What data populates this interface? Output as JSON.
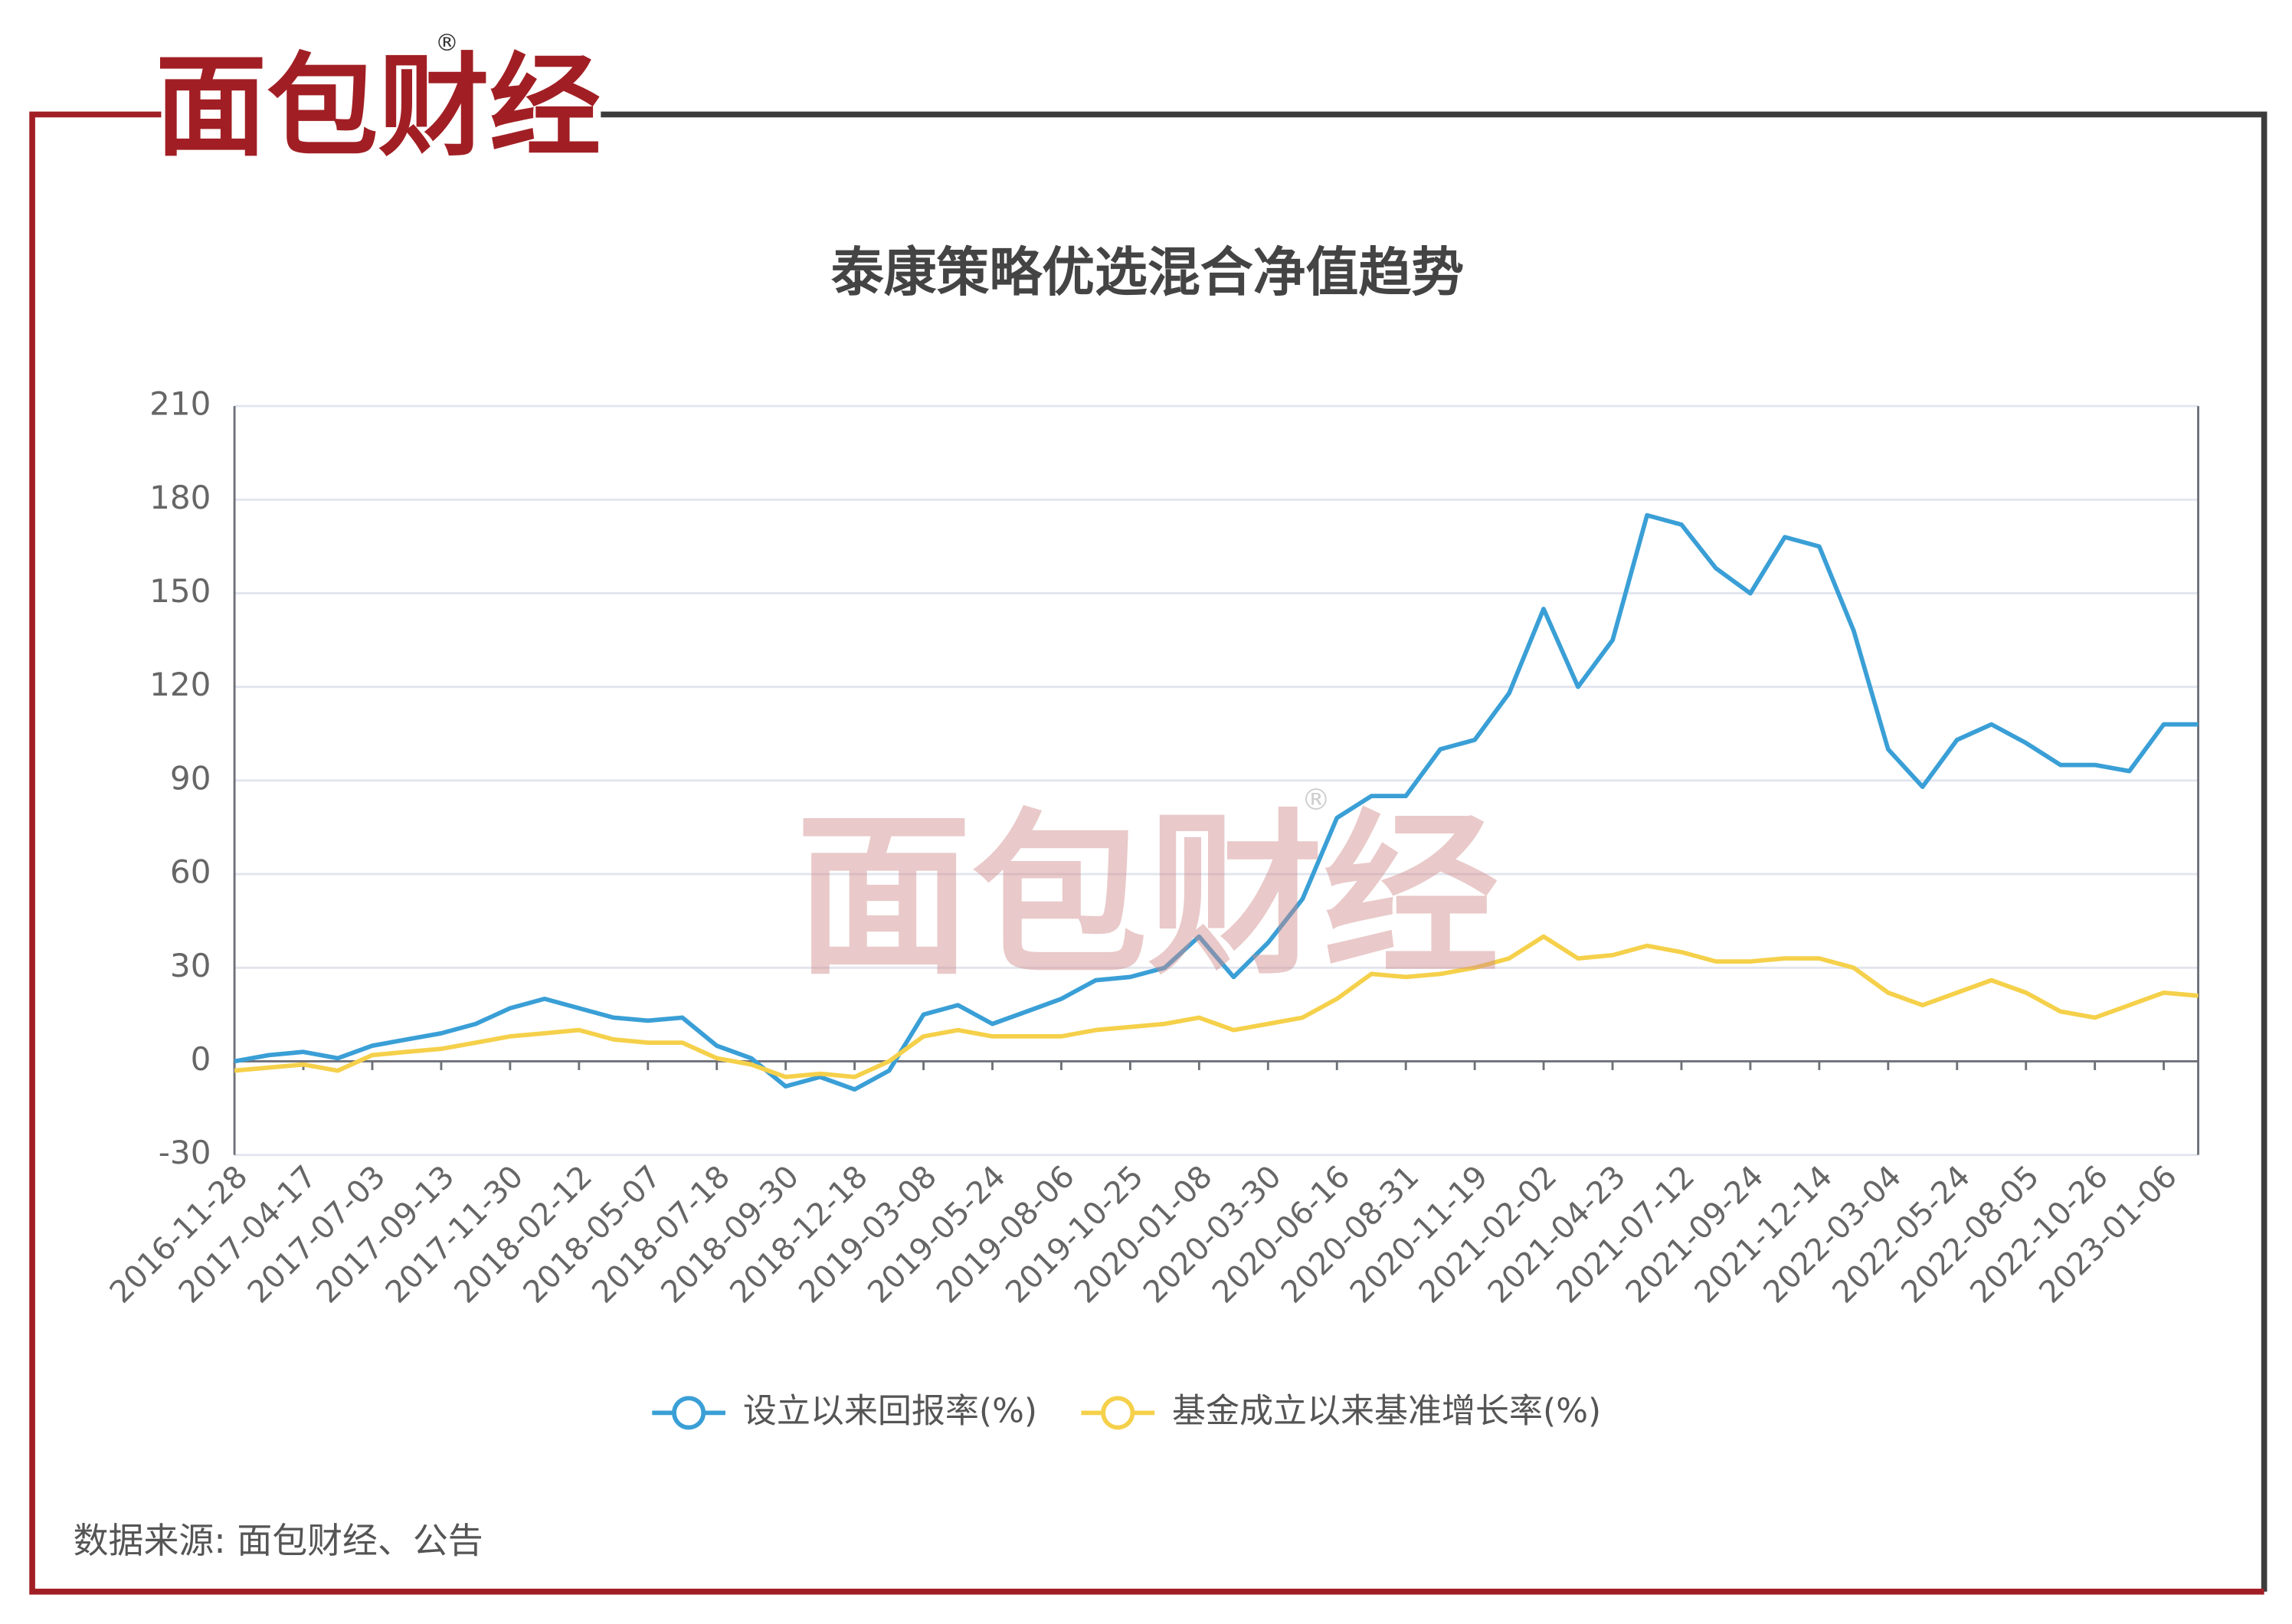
{
  "logo": "面包财经",
  "registered": "®",
  "source": "数据来源: 面包财经、公告",
  "chart_data": {
    "type": "line",
    "title": "泰康策略优选混合净值趋势",
    "categories": [
      "2016-11-28",
      null,
      "2017-04-17",
      null,
      "2017-07-03",
      null,
      "2017-09-13",
      null,
      "2017-11-30",
      null,
      "2018-02-12",
      null,
      "2018-05-07",
      null,
      "2018-07-18",
      null,
      "2018-09-30",
      null,
      "2018-12-18",
      null,
      "2019-03-08",
      null,
      "2019-05-24",
      null,
      "2019-08-06",
      null,
      "2019-10-25",
      null,
      "2020-01-08",
      null,
      "2020-03-30",
      null,
      "2020-06-16",
      null,
      "2020-08-31",
      null,
      "2020-11-19",
      null,
      "2021-02-02",
      null,
      "2021-04-23",
      null,
      "2021-07-12",
      null,
      "2021-09-24",
      null,
      "2021-12-14",
      null,
      "2022-03-04",
      null,
      "2022-05-24",
      null,
      "2022-08-05",
      null,
      "2022-10-26",
      null,
      "2023-01-06",
      null
    ],
    "series": [
      {
        "name": "设立以来回报率(%)",
        "color": "#3a9fd6",
        "values": [
          0,
          2,
          3,
          1,
          5,
          7,
          9,
          12,
          17,
          20,
          17,
          14,
          13,
          14,
          5,
          1,
          -8,
          -5,
          -9,
          -3,
          15,
          18,
          12,
          16,
          20,
          26,
          27,
          30,
          40,
          27,
          38,
          52,
          78,
          85,
          85,
          100,
          103,
          118,
          145,
          120,
          135,
          175,
          172,
          158,
          150,
          168,
          165,
          138,
          100,
          88,
          103,
          108,
          102,
          95,
          95,
          93,
          108,
          108
        ]
      },
      {
        "name": "基金成立以来基准增长率(%)",
        "color": "#f5d04a",
        "values": [
          -3,
          -2,
          -1,
          -3,
          2,
          3,
          4,
          6,
          8,
          9,
          10,
          7,
          6,
          6,
          1,
          -1,
          -5,
          -4,
          -5,
          0,
          8,
          10,
          8,
          8,
          8,
          10,
          11,
          12,
          14,
          10,
          12,
          14,
          20,
          28,
          27,
          28,
          30,
          33,
          40,
          33,
          34,
          37,
          35,
          32,
          32,
          33,
          33,
          30,
          22,
          18,
          22,
          26,
          22,
          16,
          14,
          18,
          22,
          21
        ]
      }
    ],
    "ylim": [
      -30,
      210
    ],
    "yticks": [
      -30,
      0,
      30,
      60,
      90,
      120,
      150,
      180,
      210
    ],
    "grid": true
  }
}
